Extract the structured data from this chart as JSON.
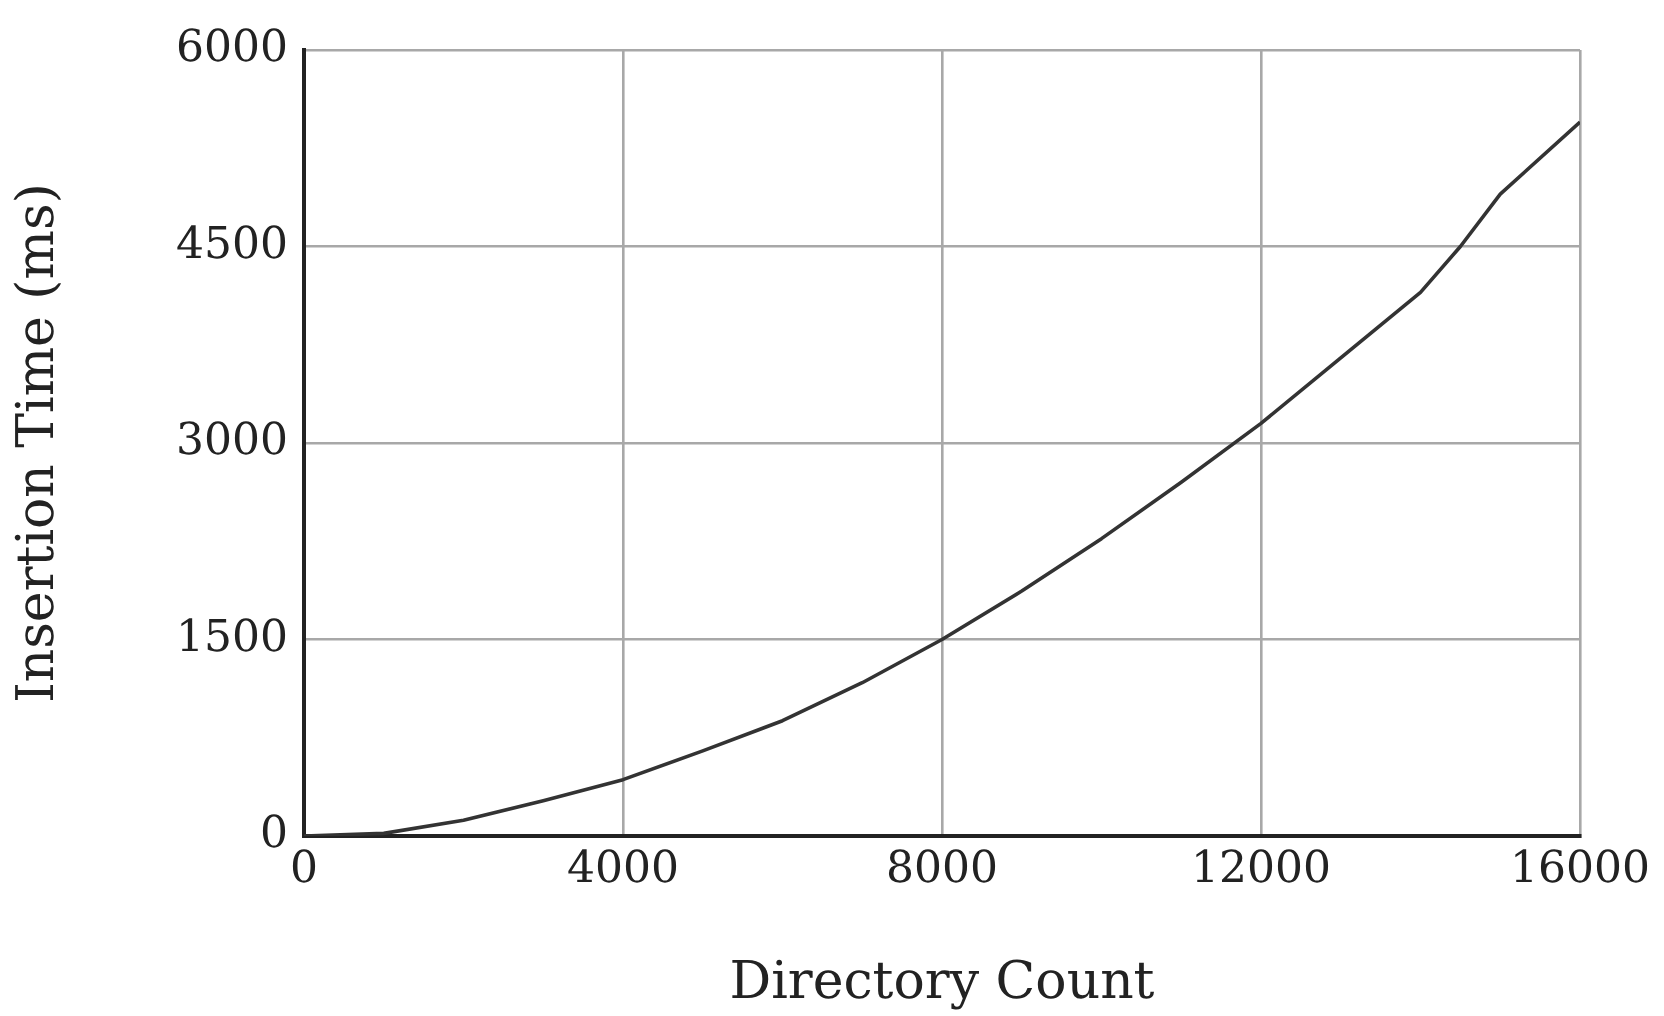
{
  "chart_data": {
    "type": "line",
    "xlabel": "Directory Count",
    "ylabel": "Insertion Time (ms)",
    "x": [
      0,
      1000,
      2000,
      3000,
      4000,
      5000,
      6000,
      7000,
      8000,
      9000,
      10000,
      11000,
      12000,
      13000,
      14000,
      14500,
      15000,
      16000
    ],
    "values": [
      0,
      20,
      120,
      270,
      430,
      650,
      880,
      1170,
      1500,
      1870,
      2270,
      2700,
      3150,
      3650,
      4150,
      4500,
      4900,
      5450
    ],
    "color": "#333333",
    "xlim": [
      0,
      16000
    ],
    "ylim": [
      0,
      6000
    ],
    "xticks": [
      0,
      4000,
      8000,
      12000,
      16000
    ],
    "yticks": [
      0,
      1500,
      3000,
      4500,
      6000
    ],
    "grid": true,
    "legend": false,
    "marker": "none",
    "line_style": "solid"
  }
}
